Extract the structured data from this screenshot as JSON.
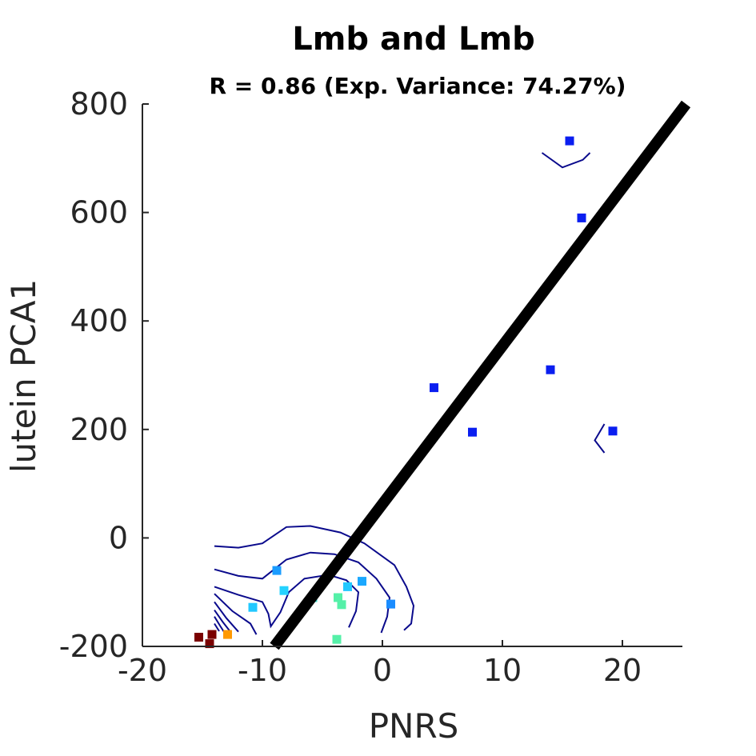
{
  "chart_data": {
    "type": "scatter",
    "title": "Lmb and Lmb",
    "subtitle": "R = 0.86 (Exp. Variance: 74.27%)",
    "xlabel": "PNRS",
    "ylabel": "lutein PCA1",
    "xlim": [
      -20,
      25
    ],
    "ylim": [
      -200,
      800
    ],
    "xticks": [
      -20,
      -10,
      0,
      10,
      20
    ],
    "xtick_labels": [
      "-20",
      "-10",
      "0",
      "10",
      "20"
    ],
    "yticks": [
      -200,
      0,
      200,
      400,
      600,
      800
    ],
    "ytick_labels": [
      "-200",
      "0",
      "200",
      "400",
      "600",
      "800"
    ],
    "grid": false,
    "points": [
      {
        "x": 15.6,
        "y": 732,
        "color": "#0a1ef0"
      },
      {
        "x": 16.6,
        "y": 590,
        "color": "#0a1ef0"
      },
      {
        "x": 14.0,
        "y": 310,
        "color": "#0a1ef0"
      },
      {
        "x": 19.2,
        "y": 197,
        "color": "#0a1ef0"
      },
      {
        "x": 4.3,
        "y": 277,
        "color": "#0a1ef0"
      },
      {
        "x": 7.5,
        "y": 195,
        "color": "#0a1ef0"
      },
      {
        "x": 0.7,
        "y": -122,
        "color": "#1a8cff"
      },
      {
        "x": -1.7,
        "y": -80,
        "color": "#1aa8ff"
      },
      {
        "x": -8.8,
        "y": -60,
        "color": "#1a9cff"
      },
      {
        "x": -2.9,
        "y": -90,
        "color": "#22c8ff"
      },
      {
        "x": -10.8,
        "y": -128,
        "color": "#22c8ff"
      },
      {
        "x": -8.2,
        "y": -97,
        "color": "#25d2ff"
      },
      {
        "x": -5.8,
        "y": -110,
        "color": "#3be0d0"
      },
      {
        "x": -3.7,
        "y": -110,
        "color": "#55f0a8"
      },
      {
        "x": -3.4,
        "y": -123,
        "color": "#55f0a8"
      },
      {
        "x": -3.8,
        "y": -187,
        "color": "#55f0a8"
      },
      {
        "x": -12.9,
        "y": -178,
        "color": "#ff9900"
      },
      {
        "x": -15.3,
        "y": -183,
        "color": "#7a0000"
      },
      {
        "x": -14.2,
        "y": -178,
        "color": "#7a0000"
      },
      {
        "x": -14.4,
        "y": -195,
        "color": "#7a0000"
      }
    ],
    "fit_line": {
      "x": [
        -9.0,
        25.3
      ],
      "y": [
        -200,
        800
      ],
      "color": "#000000"
    },
    "contours": {
      "color": "#0a0a8c",
      "lines": [
        [
          [
            -14,
            -15
          ],
          [
            -12,
            -18
          ],
          [
            -10,
            -10
          ],
          [
            -8,
            20
          ],
          [
            -6,
            22
          ],
          [
            -3.5,
            10
          ],
          [
            -1.5,
            -10
          ],
          [
            1,
            -50
          ],
          [
            2,
            -90
          ],
          [
            2.6,
            -125
          ],
          [
            2.4,
            -158
          ],
          [
            1.8,
            -170
          ]
        ],
        [
          [
            -14,
            -58
          ],
          [
            -12,
            -70
          ],
          [
            -10,
            -75
          ],
          [
            -8,
            -40
          ],
          [
            -6,
            -27
          ],
          [
            -4,
            -30
          ],
          [
            -2,
            -45
          ],
          [
            -0.5,
            -75
          ],
          [
            0.6,
            -110
          ],
          [
            0.4,
            -145
          ],
          [
            -0.1,
            -175
          ]
        ],
        [
          [
            -14,
            -90
          ],
          [
            -12,
            -105
          ],
          [
            -10,
            -118
          ],
          [
            -9.5,
            -140
          ],
          [
            -9.3,
            -163
          ],
          [
            -8.5,
            -137
          ],
          [
            -7.8,
            -100
          ],
          [
            -6.5,
            -75
          ],
          [
            -4.5,
            -68
          ],
          [
            -3,
            -78
          ],
          [
            -2,
            -100
          ],
          [
            -2.2,
            -135
          ],
          [
            -2.8,
            -165
          ]
        ],
        [
          [
            -14,
            -103
          ],
          [
            -12.5,
            -135
          ],
          [
            -11,
            -158
          ],
          [
            -10.5,
            -178
          ]
        ],
        [
          [
            -14,
            -118
          ],
          [
            -13,
            -148
          ],
          [
            -12,
            -173
          ]
        ],
        [
          [
            -14,
            -133
          ],
          [
            -13.3,
            -155
          ],
          [
            -12.6,
            -175
          ]
        ],
        [
          [
            -14,
            -145
          ],
          [
            -13.5,
            -163
          ],
          [
            -13,
            -180
          ]
        ],
        [
          [
            -14,
            -158
          ],
          [
            -13.6,
            -172
          ]
        ],
        [
          [
            13.3,
            710
          ],
          [
            15.0,
            683
          ],
          [
            16.7,
            697
          ],
          [
            17.3,
            710
          ]
        ],
        [
          [
            18.5,
            210
          ],
          [
            17.7,
            180
          ],
          [
            18.5,
            157
          ]
        ]
      ]
    }
  }
}
